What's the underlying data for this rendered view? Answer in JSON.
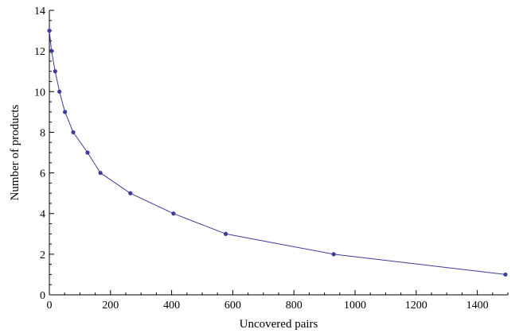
{
  "chart_data": {
    "type": "line",
    "title": "",
    "xlabel": "Uncovered pairs",
    "ylabel": "Number of products",
    "xlim": [
      0,
      1500
    ],
    "ylim": [
      0,
      14
    ],
    "x_ticks": [
      0,
      200,
      400,
      600,
      800,
      1000,
      1200,
      1400
    ],
    "y_ticks": [
      0,
      2,
      4,
      6,
      8,
      10,
      12,
      14
    ],
    "grid": false,
    "series": [
      {
        "color": "#3b3b9b",
        "points": [
          {
            "x": 0,
            "y": 13
          },
          {
            "x": 7,
            "y": 12
          },
          {
            "x": 19,
            "y": 11
          },
          {
            "x": 33,
            "y": 10
          },
          {
            "x": 51,
            "y": 9
          },
          {
            "x": 78,
            "y": 8
          },
          {
            "x": 125,
            "y": 7
          },
          {
            "x": 167,
            "y": 6
          },
          {
            "x": 265,
            "y": 5
          },
          {
            "x": 406,
            "y": 4
          },
          {
            "x": 577,
            "y": 3
          },
          {
            "x": 930,
            "y": 2
          },
          {
            "x": 1492,
            "y": 1
          }
        ]
      }
    ]
  }
}
